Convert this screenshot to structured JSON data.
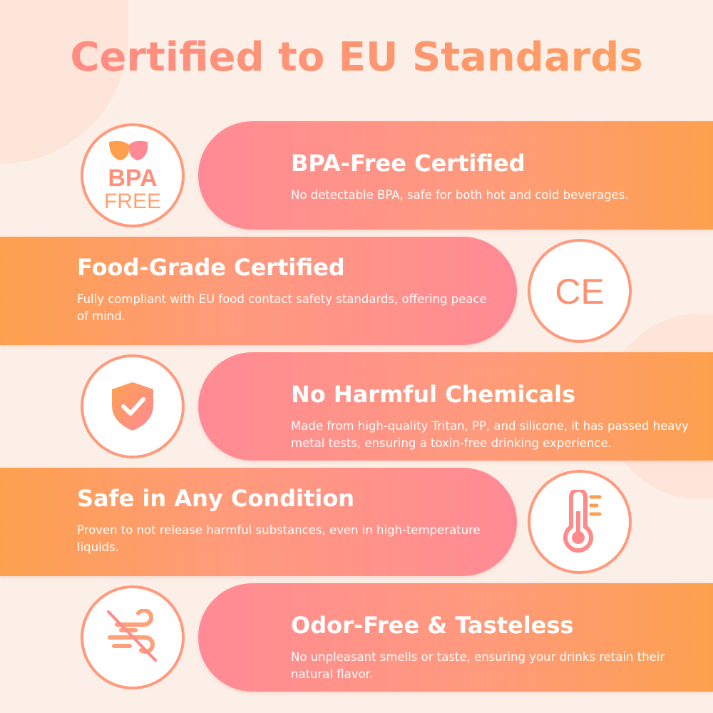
{
  "title": "Certified to EU Standards",
  "colors": {
    "pink": "#ff8a96",
    "orange": "#fda04e",
    "background": "#fcefe8"
  },
  "features": [
    {
      "title": "BPA-Free Certified",
      "desc": "No detectable BPA, safe for both hot and cold beverages.",
      "icon": "bpa-free-icon",
      "badge_text": [
        "BPA",
        "FREE"
      ]
    },
    {
      "title": "Food-Grade Certified",
      "desc": "Fully compliant with EU food contact safety standards, offering peace of mind.",
      "icon": "ce-mark-icon",
      "badge_text": [
        "CE"
      ]
    },
    {
      "title": "No Harmful Chemicals",
      "desc": "Made from high-quality Tritan, PP, and silicone, it has passed heavy metal tests, ensuring a toxin-free drinking experience.",
      "icon": "shield-check-icon"
    },
    {
      "title": "Safe in Any Condition",
      "desc": "Proven to not release harmful substances, even in high-temperature liquids.",
      "icon": "thermometer-icon"
    },
    {
      "title": "Odor-Free & Tasteless",
      "desc": "No unpleasant smells or taste, ensuring your drinks retain their natural flavor.",
      "icon": "no-odor-icon"
    }
  ]
}
